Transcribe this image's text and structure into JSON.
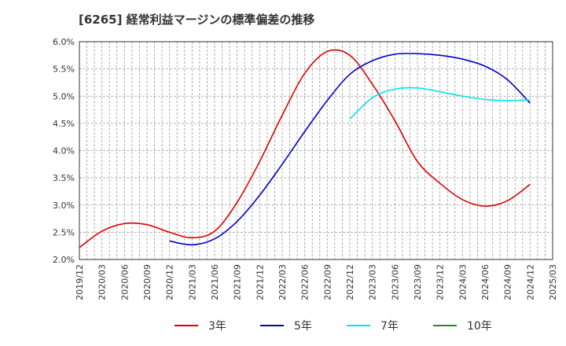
{
  "title": "[6265]  経常利益マージンの標準偏差の推移",
  "chart_data": {
    "type": "line",
    "title": "[6265]  経常利益マージンの標準偏差の推移",
    "xlabel": "",
    "ylabel": "",
    "ylim": [
      2.0,
      6.0
    ],
    "y_ticks": [
      "2.0%",
      "2.5%",
      "3.0%",
      "3.5%",
      "4.0%",
      "4.5%",
      "5.0%",
      "5.5%",
      "6.0%"
    ],
    "y_tick_values": [
      2.0,
      2.5,
      3.0,
      3.5,
      4.0,
      4.5,
      5.0,
      5.5,
      6.0
    ],
    "x_ticks": [
      "2019/12",
      "2020/03",
      "2020/06",
      "2020/09",
      "2020/12",
      "2021/03",
      "2021/06",
      "2021/09",
      "2021/12",
      "2022/03",
      "2022/06",
      "2022/09",
      "2022/12",
      "2023/03",
      "2023/06",
      "2023/09",
      "2023/12",
      "2024/03",
      "2024/06",
      "2024/09",
      "2024/12",
      "2025/03"
    ],
    "grid": true,
    "legend_position": "bottom",
    "series": [
      {
        "name": "3年",
        "color": "#e00000",
        "points": [
          [
            "2019/12",
            2.22
          ],
          [
            "2020/03",
            2.52
          ],
          [
            "2020/06",
            2.66
          ],
          [
            "2020/09",
            2.64
          ],
          [
            "2020/12",
            2.5
          ],
          [
            "2021/03",
            2.4
          ],
          [
            "2021/06",
            2.52
          ],
          [
            "2021/09",
            3.05
          ],
          [
            "2021/12",
            3.8
          ],
          [
            "2022/03",
            4.65
          ],
          [
            "2022/06",
            5.42
          ],
          [
            "2022/09",
            5.82
          ],
          [
            "2022/12",
            5.75
          ],
          [
            "2023/03",
            5.22
          ],
          [
            "2023/06",
            4.55
          ],
          [
            "2023/09",
            3.8
          ],
          [
            "2023/12",
            3.4
          ],
          [
            "2024/03",
            3.1
          ],
          [
            "2024/06",
            2.98
          ],
          [
            "2024/09",
            3.08
          ],
          [
            "2024/12",
            3.38
          ]
        ]
      },
      {
        "name": "5年",
        "color": "#0000cc",
        "points": [
          [
            "2020/12",
            2.34
          ],
          [
            "2021/03",
            2.27
          ],
          [
            "2021/06",
            2.38
          ],
          [
            "2021/09",
            2.7
          ],
          [
            "2021/12",
            3.18
          ],
          [
            "2022/03",
            3.75
          ],
          [
            "2022/06",
            4.35
          ],
          [
            "2022/09",
            4.92
          ],
          [
            "2022/12",
            5.4
          ],
          [
            "2023/03",
            5.65
          ],
          [
            "2023/06",
            5.77
          ],
          [
            "2023/09",
            5.78
          ],
          [
            "2023/12",
            5.75
          ],
          [
            "2024/03",
            5.68
          ],
          [
            "2024/06",
            5.55
          ],
          [
            "2024/09",
            5.3
          ],
          [
            "2024/12",
            4.87
          ]
        ]
      },
      {
        "name": "7年",
        "color": "#00e5ee",
        "points": [
          [
            "2022/12",
            4.58
          ],
          [
            "2023/03",
            4.97
          ],
          [
            "2023/06",
            5.13
          ],
          [
            "2023/09",
            5.15
          ],
          [
            "2023/12",
            5.08
          ],
          [
            "2024/03",
            5.0
          ],
          [
            "2024/06",
            4.94
          ],
          [
            "2024/09",
            4.92
          ],
          [
            "2024/12",
            4.93
          ]
        ]
      },
      {
        "name": "10年",
        "color": "#228b22",
        "points": []
      }
    ]
  }
}
